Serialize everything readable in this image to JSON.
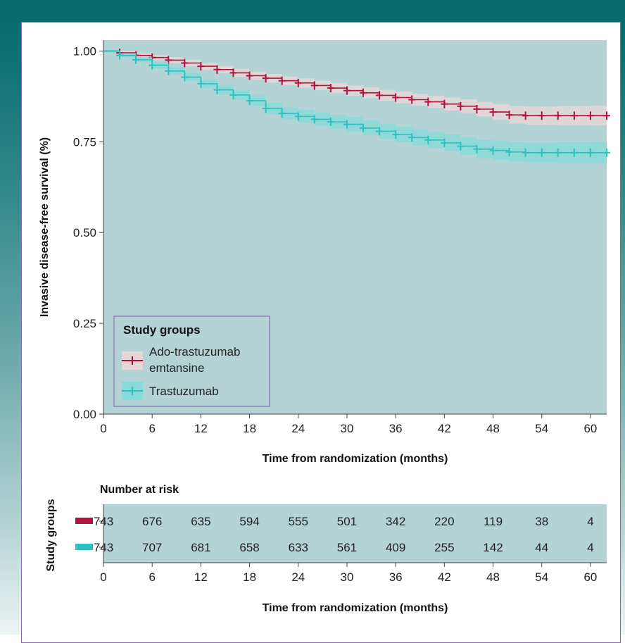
{
  "colors": {
    "header_teal": "#06696c",
    "card_border": "#8a6bb0",
    "plot_bg": "#b3d3d4",
    "series_1": "#b0133d",
    "series_1_band": "#e6d6d8",
    "series_2": "#2ec1c2",
    "series_2_band": "#88d9d9"
  },
  "chart_data": {
    "type": "line",
    "subtype": "kaplan-meier",
    "xlabel": "Time from randomization (months)",
    "ylabel": "Invasive disease-free survival (%)",
    "xlim": [
      0,
      62
    ],
    "ylim": [
      0,
      1.03
    ],
    "x_ticks": [
      "0",
      "6",
      "12",
      "18",
      "24",
      "30",
      "36",
      "42",
      "48",
      "54",
      "60"
    ],
    "y_ticks": [
      "0.00",
      "0.25",
      "0.50",
      "0.75",
      "1.00"
    ],
    "grid": false,
    "legend": {
      "title": "Study groups",
      "position": "bottom-left",
      "entries": [
        "Ado-trastuzumab emtansine",
        "Trastuzumab"
      ]
    },
    "series": [
      {
        "name": "Ado-trastuzumab emtansine",
        "x": [
          0,
          2,
          4,
          6,
          8,
          10,
          12,
          14,
          16,
          18,
          20,
          22,
          24,
          26,
          28,
          30,
          32,
          34,
          36,
          38,
          40,
          42,
          44,
          46,
          48,
          50,
          52,
          54,
          56,
          58,
          60,
          62
        ],
        "y": [
          1.0,
          0.995,
          0.988,
          0.982,
          0.975,
          0.967,
          0.958,
          0.949,
          0.94,
          0.932,
          0.925,
          0.918,
          0.912,
          0.905,
          0.898,
          0.891,
          0.885,
          0.878,
          0.872,
          0.866,
          0.86,
          0.854,
          0.848,
          0.84,
          0.832,
          0.824,
          0.822,
          0.822,
          0.822,
          0.822,
          0.822,
          0.822
        ],
        "band_halfwidth": [
          0.0,
          0.005,
          0.006,
          0.007,
          0.008,
          0.009,
          0.01,
          0.01,
          0.011,
          0.011,
          0.012,
          0.012,
          0.013,
          0.013,
          0.014,
          0.014,
          0.015,
          0.015,
          0.016,
          0.016,
          0.017,
          0.018,
          0.019,
          0.02,
          0.022,
          0.024,
          0.025,
          0.025,
          0.026,
          0.026,
          0.027,
          0.027
        ]
      },
      {
        "name": "Trastuzumab",
        "x": [
          0,
          2,
          4,
          6,
          8,
          10,
          12,
          14,
          16,
          18,
          20,
          22,
          24,
          26,
          28,
          30,
          32,
          34,
          36,
          38,
          40,
          42,
          44,
          46,
          48,
          50,
          52,
          54,
          56,
          58,
          60,
          62
        ],
        "y": [
          1.0,
          0.988,
          0.976,
          0.961,
          0.945,
          0.928,
          0.91,
          0.893,
          0.879,
          0.863,
          0.842,
          0.828,
          0.82,
          0.812,
          0.805,
          0.798,
          0.788,
          0.779,
          0.77,
          0.762,
          0.755,
          0.747,
          0.738,
          0.73,
          0.726,
          0.722,
          0.72,
          0.72,
          0.72,
          0.72,
          0.72,
          0.72
        ],
        "band_halfwidth": [
          0.0,
          0.006,
          0.007,
          0.009,
          0.01,
          0.011,
          0.012,
          0.013,
          0.014,
          0.015,
          0.016,
          0.017,
          0.018,
          0.018,
          0.019,
          0.02,
          0.02,
          0.021,
          0.021,
          0.022,
          0.022,
          0.023,
          0.024,
          0.025,
          0.026,
          0.027,
          0.028,
          0.028,
          0.029,
          0.029,
          0.03,
          0.03
        ]
      }
    ]
  },
  "risk_table": {
    "title": "Number at risk",
    "ylabel": "Study groups",
    "xlabel": "Time from randomization (months)",
    "x_ticks": [
      "0",
      "6",
      "12",
      "18",
      "24",
      "30",
      "36",
      "42",
      "48",
      "54",
      "60"
    ],
    "rows": [
      {
        "group": "Ado-trastuzumab emtansine",
        "values": [
          "743",
          "676",
          "635",
          "594",
          "555",
          "501",
          "342",
          "220",
          "119",
          "38",
          "4"
        ]
      },
      {
        "group": "Trastuzumab",
        "values": [
          "743",
          "707",
          "681",
          "658",
          "633",
          "561",
          "409",
          "255",
          "142",
          "44",
          "4"
        ]
      }
    ]
  }
}
